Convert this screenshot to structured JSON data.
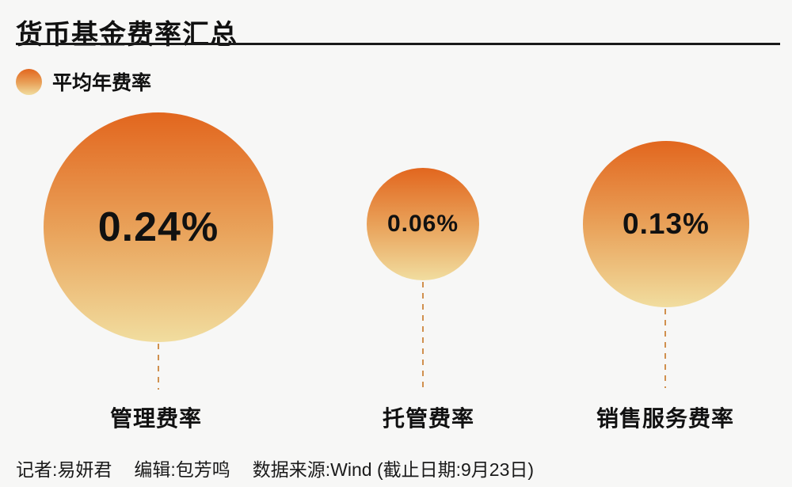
{
  "title": "货币基金费率汇总",
  "legend": {
    "label": "平均年费率"
  },
  "chart_data": {
    "type": "bubble",
    "title": "货币基金费率汇总",
    "legend_label": "平均年费率",
    "categories": [
      "管理费率",
      "托管费率",
      "销售服务费率"
    ],
    "values": [
      0.24,
      0.06,
      0.13
    ],
    "unit": "%",
    "value_labels": [
      "0.24%",
      "0.06%",
      "0.13%"
    ],
    "layout_hints": {
      "bubble_area_proportional_to_value": true,
      "bubble_gradient_top": "#e2661e",
      "bubble_gradient_mid": "#e9a35b",
      "bubble_gradient_bottom": "#f1dd9f",
      "connector_style": "dashed",
      "connector_color": "#d0904e",
      "background": "#f7f7f6",
      "text_color": "#111111"
    }
  },
  "bubbles": [
    {
      "value": "0.24%",
      "label": "管理费率"
    },
    {
      "value": "0.06%",
      "label": "托管费率"
    },
    {
      "value": "0.13%",
      "label": "销售服务费率"
    }
  ],
  "footer": {
    "reporter": "记者:易妍君",
    "editor": "编辑:包芳鸣",
    "source": "数据来源:Wind (截止日期:9月23日)"
  }
}
